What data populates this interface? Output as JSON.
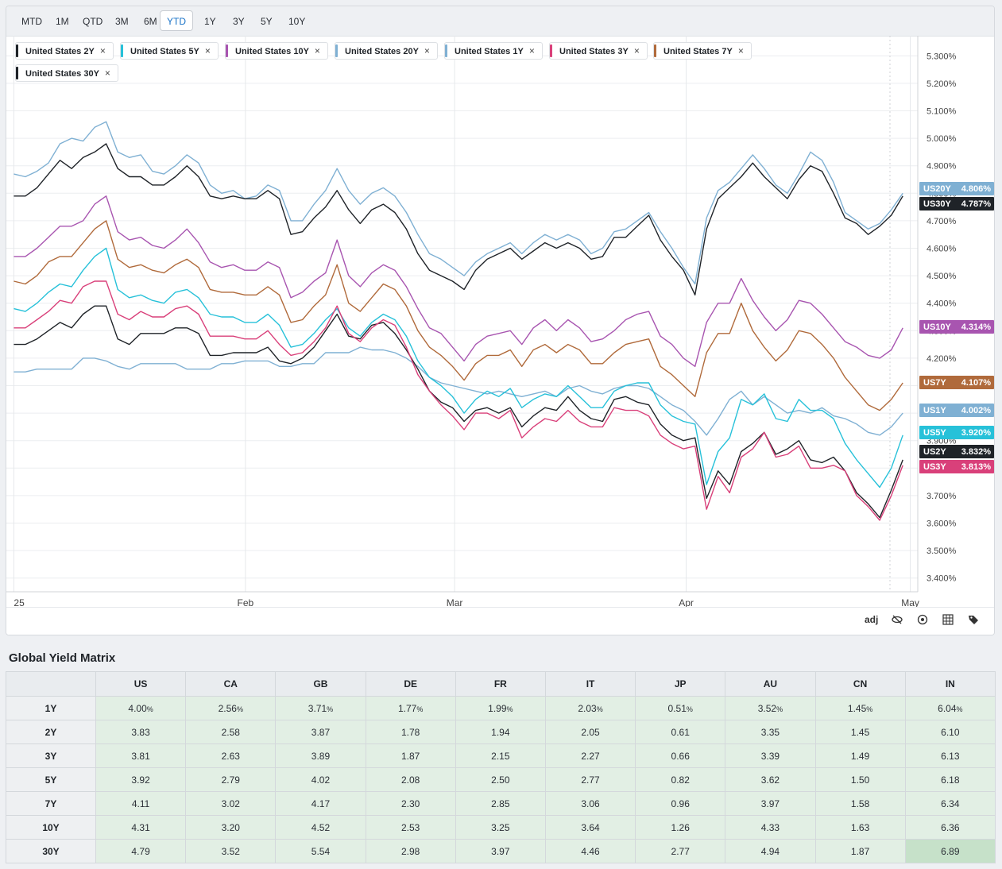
{
  "range_buttons": [
    "MTD",
    "1M",
    "QTD",
    "3M",
    "6M",
    "YTD",
    "1Y",
    "3Y",
    "5Y",
    "10Y"
  ],
  "active_range": "YTD",
  "toolbar": {
    "adj_label": "adj"
  },
  "matrix": {
    "title": "Global Yield Matrix",
    "columns": [
      "US",
      "CA",
      "GB",
      "DE",
      "FR",
      "IT",
      "JP",
      "AU",
      "CN",
      "IN"
    ],
    "rows": [
      {
        "label": "1Y",
        "values": [
          "4.00",
          "2.56",
          "3.71",
          "1.77",
          "1.99",
          "2.03",
          "0.51",
          "3.52",
          "1.45",
          "6.04"
        ],
        "suffix": "%"
      },
      {
        "label": "2Y",
        "values": [
          "3.83",
          "2.58",
          "3.87",
          "1.78",
          "1.94",
          "2.05",
          "0.61",
          "3.35",
          "1.45",
          "6.10"
        ],
        "suffix": ""
      },
      {
        "label": "3Y",
        "values": [
          "3.81",
          "2.63",
          "3.89",
          "1.87",
          "2.15",
          "2.27",
          "0.66",
          "3.39",
          "1.49",
          "6.13"
        ],
        "suffix": ""
      },
      {
        "label": "5Y",
        "values": [
          "3.92",
          "2.79",
          "4.02",
          "2.08",
          "2.50",
          "2.77",
          "0.82",
          "3.62",
          "1.50",
          "6.18"
        ],
        "suffix": ""
      },
      {
        "label": "7Y",
        "values": [
          "4.11",
          "3.02",
          "4.17",
          "2.30",
          "2.85",
          "3.06",
          "0.96",
          "3.97",
          "1.58",
          "6.34"
        ],
        "suffix": ""
      },
      {
        "label": "10Y",
        "values": [
          "4.31",
          "3.20",
          "4.52",
          "2.53",
          "3.25",
          "3.64",
          "1.26",
          "4.33",
          "1.63",
          "6.36"
        ],
        "suffix": ""
      },
      {
        "label": "30Y",
        "values": [
          "4.79",
          "3.52",
          "5.54",
          "2.98",
          "3.97",
          "4.46",
          "2.77",
          "4.94",
          "1.87",
          "6.89"
        ],
        "suffix": ""
      }
    ]
  },
  "chart_data": {
    "type": "line",
    "ylim": [
      3.35,
      5.35
    ],
    "y_ticks": [
      "5.300%",
      "5.200%",
      "5.100%",
      "5.000%",
      "4.900%",
      "4.800%",
      "4.700%",
      "4.600%",
      "4.500%",
      "4.400%",
      "4.300%",
      "4.200%",
      "4.100%",
      "4.000%",
      "3.900%",
      "3.800%",
      "3.700%",
      "3.600%",
      "3.500%",
      "3.400%"
    ],
    "y_tick_values": [
      5.3,
      5.2,
      5.1,
      5.0,
      4.9,
      4.8,
      4.7,
      4.6,
      4.5,
      4.4,
      4.3,
      4.2,
      4.1,
      4.0,
      3.9,
      3.8,
      3.7,
      3.6,
      3.5,
      3.4
    ],
    "xlim": [
      "2024-12-31",
      "2025-05-02"
    ],
    "x_ticks": [
      {
        "label": "25",
        "date": "2025-01-01"
      },
      {
        "label": "Feb",
        "date": "2025-02-01"
      },
      {
        "label": "Mar",
        "date": "2025-03-01"
      },
      {
        "label": "Apr",
        "date": "2025-04-01"
      },
      {
        "label": "May",
        "date": "2025-05-01"
      }
    ],
    "grid": true,
    "legend": "top-left",
    "series": [
      {
        "name": "United States 20Y",
        "badge": "US20Y",
        "last": "4.806%",
        "color": "#7fb0d3",
        "values": [
          4.87,
          4.86,
          4.88,
          4.91,
          4.98,
          5.0,
          4.99,
          5.04,
          5.06,
          4.95,
          4.93,
          4.94,
          4.88,
          4.87,
          4.9,
          4.94,
          4.91,
          4.83,
          4.8,
          4.81,
          4.78,
          4.79,
          4.83,
          4.81,
          4.7,
          4.7,
          4.76,
          4.81,
          4.89,
          4.81,
          4.76,
          4.8,
          4.82,
          4.79,
          4.73,
          4.65,
          4.58,
          4.56,
          4.53,
          4.5,
          4.55,
          4.58,
          4.6,
          4.62,
          4.58,
          4.62,
          4.65,
          4.63,
          4.65,
          4.63,
          4.58,
          4.6,
          4.66,
          4.67,
          4.7,
          4.73,
          4.66,
          4.6,
          4.53,
          4.47,
          4.71,
          4.81,
          4.84,
          4.89,
          4.94,
          4.89,
          4.83,
          4.8,
          4.87,
          4.95,
          4.92,
          4.84,
          4.73,
          4.7,
          4.67,
          4.69,
          4.74,
          4.8
        ]
      },
      {
        "name": "United States 30Y",
        "badge": "US30Y",
        "last": "4.787%",
        "color": "#1f2328",
        "values": [
          4.79,
          4.79,
          4.82,
          4.87,
          4.92,
          4.89,
          4.93,
          4.95,
          4.98,
          4.89,
          4.86,
          4.86,
          4.83,
          4.83,
          4.86,
          4.9,
          4.86,
          4.79,
          4.78,
          4.79,
          4.78,
          4.78,
          4.81,
          4.78,
          4.65,
          4.66,
          4.71,
          4.75,
          4.81,
          4.74,
          4.69,
          4.74,
          4.76,
          4.73,
          4.67,
          4.58,
          4.52,
          4.5,
          4.48,
          4.45,
          4.52,
          4.56,
          4.58,
          4.6,
          4.56,
          4.59,
          4.62,
          4.6,
          4.62,
          4.6,
          4.56,
          4.57,
          4.64,
          4.64,
          4.68,
          4.72,
          4.63,
          4.57,
          4.52,
          4.43,
          4.67,
          4.78,
          4.82,
          4.86,
          4.91,
          4.86,
          4.82,
          4.78,
          4.85,
          4.9,
          4.88,
          4.8,
          4.71,
          4.69,
          4.65,
          4.68,
          4.72,
          4.79
        ]
      },
      {
        "name": "United States 10Y",
        "badge": "US10Y",
        "last": "4.314%",
        "color": "#a855b0",
        "values": [
          4.57,
          4.57,
          4.6,
          4.64,
          4.68,
          4.68,
          4.7,
          4.76,
          4.79,
          4.66,
          4.63,
          4.64,
          4.61,
          4.6,
          4.63,
          4.67,
          4.62,
          4.55,
          4.53,
          4.54,
          4.52,
          4.52,
          4.55,
          4.53,
          4.42,
          4.44,
          4.48,
          4.51,
          4.63,
          4.5,
          4.46,
          4.51,
          4.54,
          4.52,
          4.46,
          4.38,
          4.31,
          4.29,
          4.24,
          4.19,
          4.25,
          4.28,
          4.29,
          4.3,
          4.25,
          4.31,
          4.34,
          4.3,
          4.34,
          4.31,
          4.26,
          4.27,
          4.3,
          4.34,
          4.36,
          4.37,
          4.28,
          4.25,
          4.2,
          4.17,
          4.33,
          4.4,
          4.4,
          4.49,
          4.41,
          4.35,
          4.3,
          4.34,
          4.41,
          4.4,
          4.36,
          4.31,
          4.26,
          4.24,
          4.21,
          4.2,
          4.23,
          4.31
        ]
      },
      {
        "name": "United States 7Y",
        "badge": "US7Y",
        "last": "4.107%",
        "color": "#b06a3b",
        "values": [
          4.48,
          4.47,
          4.5,
          4.55,
          4.57,
          4.57,
          4.62,
          4.67,
          4.7,
          4.56,
          4.53,
          4.54,
          4.52,
          4.51,
          4.54,
          4.56,
          4.53,
          4.45,
          4.44,
          4.44,
          4.43,
          4.43,
          4.46,
          4.43,
          4.33,
          4.34,
          4.39,
          4.43,
          4.54,
          4.4,
          4.37,
          4.42,
          4.47,
          4.45,
          4.39,
          4.3,
          4.24,
          4.21,
          4.17,
          4.12,
          4.18,
          4.21,
          4.21,
          4.23,
          4.17,
          4.23,
          4.25,
          4.22,
          4.25,
          4.23,
          4.18,
          4.18,
          4.22,
          4.25,
          4.26,
          4.27,
          4.17,
          4.14,
          4.1,
          4.06,
          4.22,
          4.29,
          4.29,
          4.4,
          4.3,
          4.24,
          4.19,
          4.23,
          4.3,
          4.29,
          4.25,
          4.2,
          4.13,
          4.08,
          4.03,
          4.01,
          4.05,
          4.11
        ]
      },
      {
        "name": "United States 1Y",
        "badge": "US1Y",
        "last": "4.002%",
        "color": "#7fb0d3",
        "values": [
          4.15,
          4.15,
          4.16,
          4.16,
          4.16,
          4.16,
          4.2,
          4.2,
          4.19,
          4.17,
          4.16,
          4.18,
          4.18,
          4.18,
          4.18,
          4.16,
          4.16,
          4.16,
          4.18,
          4.18,
          4.19,
          4.19,
          4.19,
          4.17,
          4.17,
          4.18,
          4.18,
          4.22,
          4.22,
          4.22,
          4.24,
          4.23,
          4.23,
          4.22,
          4.2,
          4.17,
          4.13,
          4.11,
          4.1,
          4.09,
          4.08,
          4.07,
          4.08,
          4.07,
          4.06,
          4.07,
          4.08,
          4.06,
          4.09,
          4.1,
          4.08,
          4.07,
          4.09,
          4.1,
          4.1,
          4.09,
          4.06,
          4.03,
          4.01,
          3.97,
          3.92,
          3.98,
          4.05,
          4.08,
          4.03,
          4.06,
          4.03,
          4.0,
          4.01,
          4.0,
          4.02,
          3.99,
          3.98,
          3.96,
          3.93,
          3.92,
          3.95,
          4.0
        ]
      },
      {
        "name": "United States 5Y",
        "badge": "US5Y",
        "last": "3.920%",
        "color": "#27c1d9",
        "values": [
          4.38,
          4.37,
          4.4,
          4.44,
          4.47,
          4.46,
          4.52,
          4.57,
          4.6,
          4.45,
          4.42,
          4.43,
          4.41,
          4.4,
          4.44,
          4.45,
          4.42,
          4.36,
          4.35,
          4.35,
          4.33,
          4.33,
          4.36,
          4.32,
          4.24,
          4.25,
          4.29,
          4.34,
          4.38,
          4.31,
          4.28,
          4.33,
          4.36,
          4.34,
          4.28,
          4.19,
          4.13,
          4.1,
          4.06,
          4.0,
          4.05,
          4.08,
          4.06,
          4.09,
          4.02,
          4.05,
          4.07,
          4.06,
          4.1,
          4.06,
          4.02,
          4.02,
          4.08,
          4.1,
          4.11,
          4.11,
          4.03,
          3.99,
          3.97,
          3.96,
          3.74,
          3.86,
          3.91,
          4.05,
          4.03,
          4.07,
          3.98,
          3.97,
          4.05,
          4.01,
          4.01,
          3.98,
          3.89,
          3.83,
          3.78,
          3.73,
          3.8,
          3.92
        ]
      },
      {
        "name": "United States 2Y",
        "badge": "US2Y",
        "last": "3.832%",
        "color": "#1f2328",
        "values": [
          4.25,
          4.25,
          4.27,
          4.3,
          4.33,
          4.31,
          4.36,
          4.39,
          4.39,
          4.27,
          4.25,
          4.29,
          4.29,
          4.29,
          4.31,
          4.31,
          4.29,
          4.21,
          4.21,
          4.22,
          4.22,
          4.22,
          4.24,
          4.19,
          4.18,
          4.2,
          4.24,
          4.3,
          4.36,
          4.28,
          4.27,
          4.32,
          4.33,
          4.29,
          4.23,
          4.16,
          4.08,
          4.04,
          4.02,
          3.97,
          4.01,
          4.02,
          4.0,
          4.02,
          3.95,
          3.99,
          4.02,
          4.01,
          4.06,
          4.01,
          3.98,
          3.97,
          4.05,
          4.06,
          4.04,
          4.03,
          3.96,
          3.92,
          3.9,
          3.91,
          3.69,
          3.79,
          3.74,
          3.86,
          3.89,
          3.93,
          3.85,
          3.87,
          3.9,
          3.83,
          3.82,
          3.84,
          3.79,
          3.71,
          3.67,
          3.62,
          3.72,
          3.83
        ]
      },
      {
        "name": "United States 3Y",
        "badge": "US3Y",
        "last": "3.813%",
        "color": "#d9407a",
        "values": [
          4.31,
          4.31,
          4.34,
          4.37,
          4.41,
          4.4,
          4.46,
          4.48,
          4.48,
          4.36,
          4.34,
          4.37,
          4.35,
          4.35,
          4.38,
          4.39,
          4.36,
          4.28,
          4.28,
          4.28,
          4.27,
          4.27,
          4.3,
          4.25,
          4.21,
          4.22,
          4.26,
          4.31,
          4.39,
          4.29,
          4.26,
          4.31,
          4.34,
          4.32,
          4.24,
          4.14,
          4.08,
          4.03,
          3.99,
          3.94,
          4.0,
          4.0,
          3.98,
          4.01,
          3.91,
          3.95,
          3.98,
          3.97,
          4.01,
          3.97,
          3.95,
          3.95,
          4.02,
          4.01,
          4.01,
          3.99,
          3.92,
          3.89,
          3.87,
          3.88,
          3.65,
          3.77,
          3.71,
          3.84,
          3.87,
          3.93,
          3.84,
          3.85,
          3.88,
          3.8,
          3.8,
          3.81,
          3.79,
          3.7,
          3.66,
          3.61,
          3.7,
          3.81
        ]
      }
    ]
  },
  "legend_chips": [
    {
      "name": "United States 2Y",
      "color": "#1f2328"
    },
    {
      "name": "United States 5Y",
      "color": "#27c1d9"
    },
    {
      "name": "United States 10Y",
      "color": "#a855b0"
    },
    {
      "name": "United States 20Y",
      "color": "#7fb0d3"
    },
    {
      "name": "United States 1Y",
      "color": "#7fb0d3"
    },
    {
      "name": "United States 3Y",
      "color": "#d9407a"
    },
    {
      "name": "United States 7Y",
      "color": "#b06a3b"
    },
    {
      "name": "United States 30Y",
      "color": "#1f2328"
    }
  ],
  "badges_order": [
    "US20Y",
    "US30Y",
    "US10Y",
    "US7Y",
    "US1Y",
    "US5Y",
    "US2Y",
    "US3Y"
  ]
}
